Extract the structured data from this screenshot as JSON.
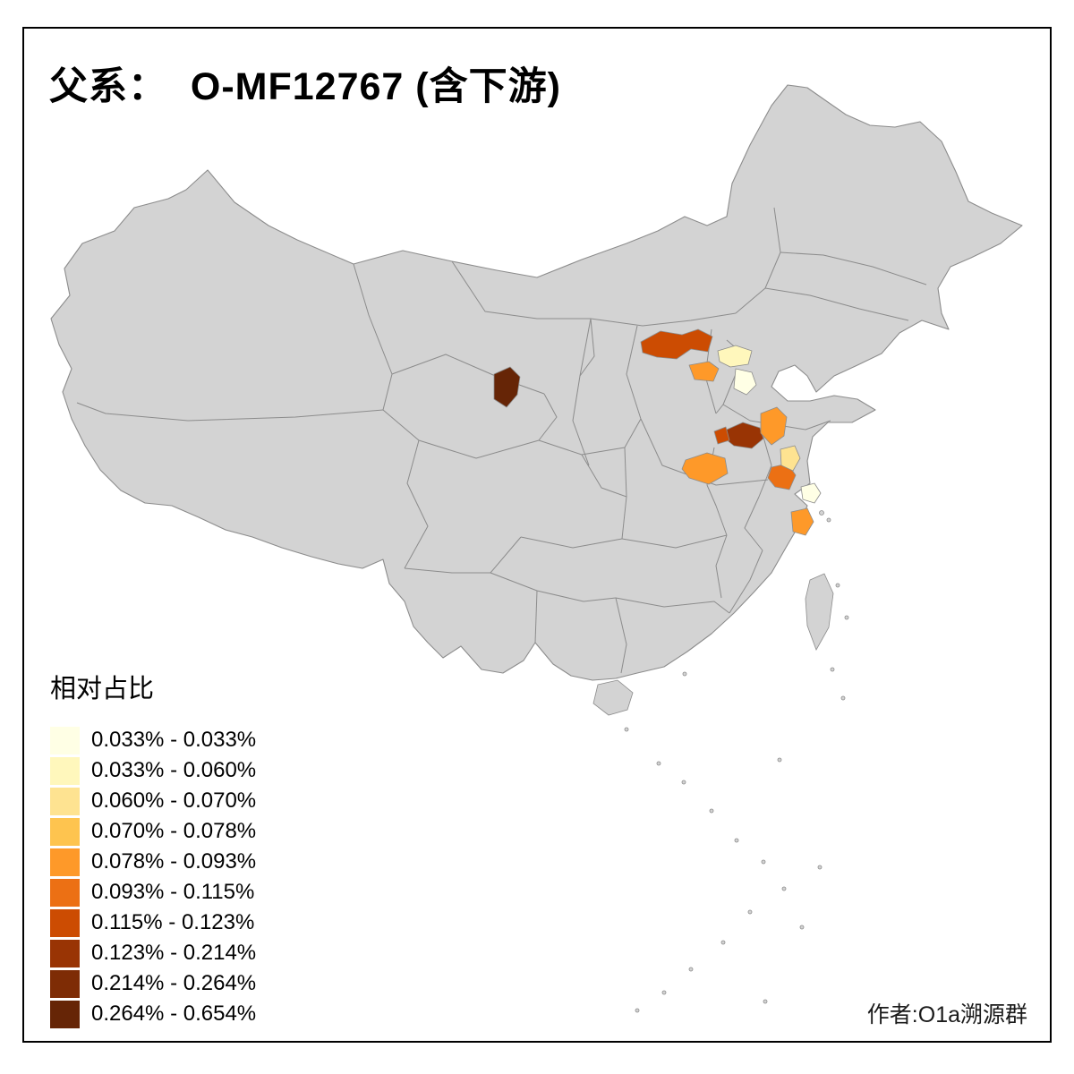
{
  "title": "父系：  O-MF12767 (含下游)",
  "attribution": "作者:O1a溯源群",
  "legend": {
    "title": "相对占比",
    "classes": [
      {
        "label": "0.033% - 0.033%",
        "color": "#ffffe5"
      },
      {
        "label": "0.033% - 0.060%",
        "color": "#fff7bc"
      },
      {
        "label": "0.060% - 0.070%",
        "color": "#fee391"
      },
      {
        "label": "0.070% - 0.078%",
        "color": "#fec44f"
      },
      {
        "label": "0.078% - 0.093%",
        "color": "#fe9929"
      },
      {
        "label": "0.093% - 0.115%",
        "color": "#ec7014"
      },
      {
        "label": "0.115% - 0.123%",
        "color": "#cc4c02"
      },
      {
        "label": "0.123% - 0.214%",
        "color": "#993404"
      },
      {
        "label": "0.214% - 0.264%",
        "color": "#7e2c05"
      },
      {
        "label": "0.264% - 0.654%",
        "color": "#662506"
      }
    ]
  },
  "map": {
    "base_fill": "#d3d3d3",
    "border_color": "#8c8c8c",
    "regions": [
      {
        "name": "region-1",
        "color": "#cc4c02"
      },
      {
        "name": "region-2",
        "color": "#fff7bc"
      },
      {
        "name": "region-3",
        "color": "#fe9929"
      },
      {
        "name": "region-4",
        "color": "#ffffe5"
      },
      {
        "name": "region-5",
        "color": "#662506"
      },
      {
        "name": "region-6",
        "color": "#993404"
      },
      {
        "name": "region-7",
        "color": "#cc4c02"
      },
      {
        "name": "region-8",
        "color": "#fe9929"
      },
      {
        "name": "region-9",
        "color": "#fe9929"
      },
      {
        "name": "region-10",
        "color": "#ec7014"
      },
      {
        "name": "region-11",
        "color": "#fee391"
      },
      {
        "name": "region-12",
        "color": "#ffffe5"
      },
      {
        "name": "region-13",
        "color": "#fe9929"
      }
    ]
  }
}
